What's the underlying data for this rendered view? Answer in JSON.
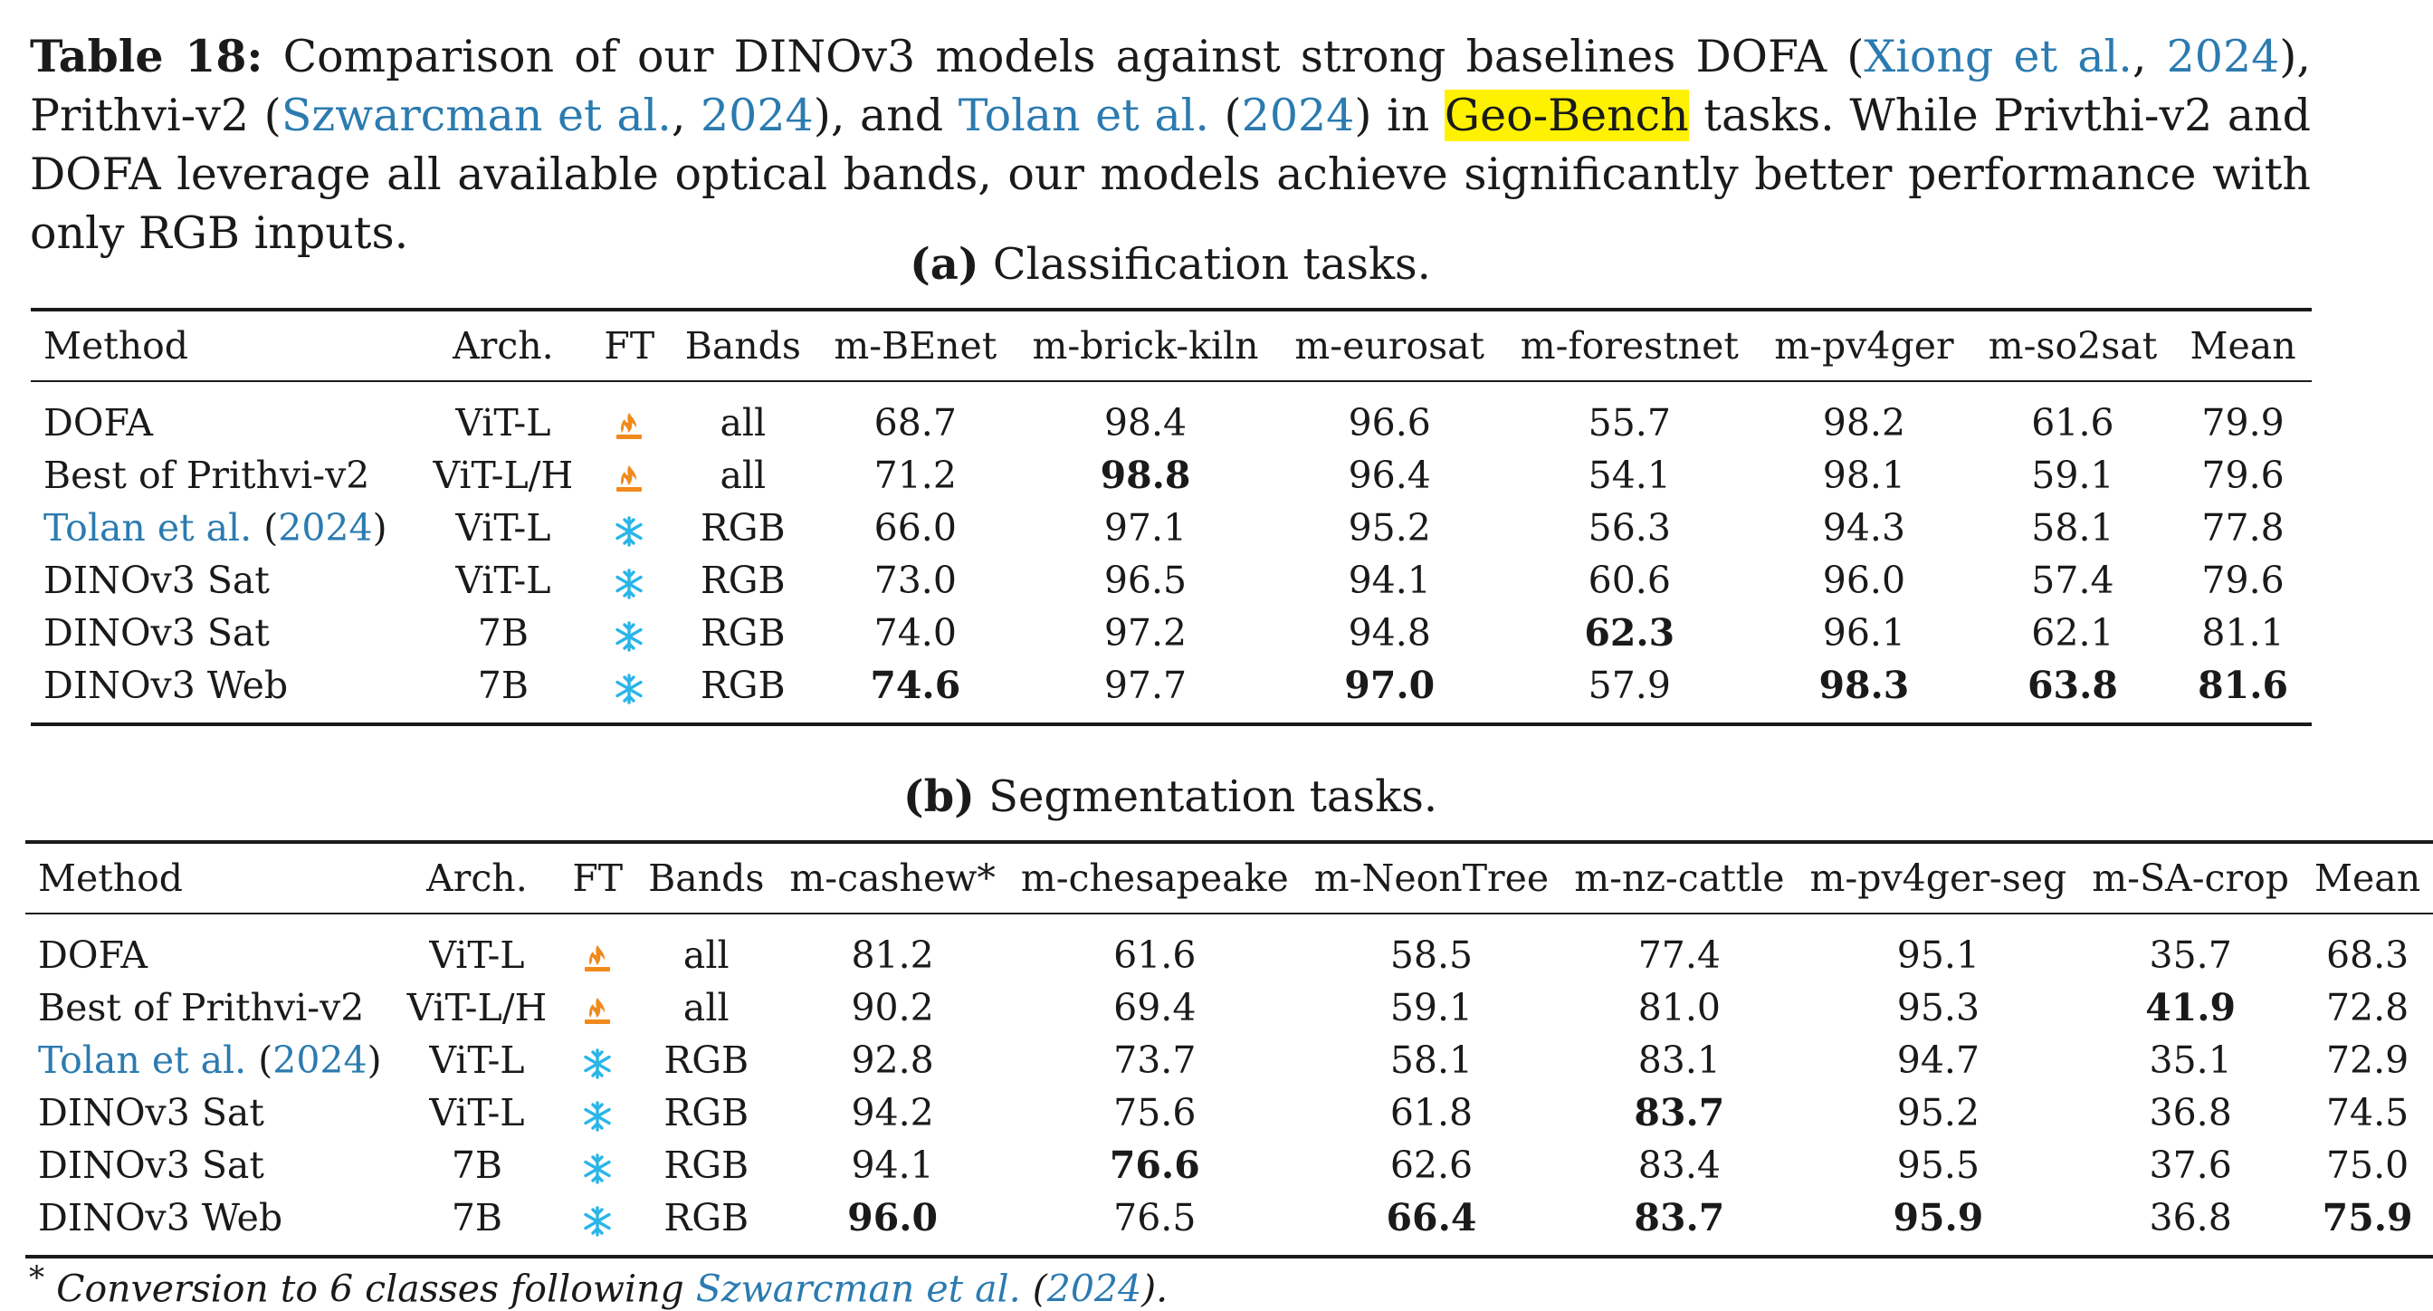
{
  "caption": {
    "label": "Table 18:",
    "part1": " Comparison of our DINOv3 models against strong baselines DOFA (",
    "cite_xiong_authors": "Xiong et al.",
    "sep1": ", ",
    "cite_xiong_year": "2024",
    "part2": "), Prithvi-v2 (",
    "cite_szw_authors": "Szwarcman et al.",
    "sep2": ", ",
    "cite_szw_year": "2024",
    "part3": "), and ",
    "cite_tolan_authors": "Tolan et al.",
    "part4": " (",
    "cite_tolan_year": "2024",
    "part5": ") in ",
    "highlight": "Geo-Bench",
    "part6": " tasks. While Privthi-v2 and DOFA leverage all available optical bands, our models achieve significantly better performance with only RGB inputs."
  },
  "table_a": {
    "label": "(a)",
    "title": " Classification tasks.",
    "headers": [
      "Method",
      "Arch.",
      "FT",
      "Bands",
      "m-BEnet",
      "m-brick-kiln",
      "m-eurosat",
      "m-forestnet",
      "m-pv4ger",
      "m-so2sat",
      "Mean"
    ],
    "rows": [
      {
        "method": "DOFA",
        "cite": false,
        "arch": "ViT-L",
        "ft": "fire",
        "bands": "all",
        "values": [
          "68.7",
          "98.4",
          "96.6",
          "55.7",
          "98.2",
          "61.6",
          "79.9"
        ],
        "bold": [
          false,
          false,
          false,
          false,
          false,
          false,
          false
        ]
      },
      {
        "method": "Best of Prithvi-v2",
        "cite": false,
        "arch": "ViT-L/H",
        "ft": "fire",
        "bands": "all",
        "values": [
          "71.2",
          "98.8",
          "96.4",
          "54.1",
          "98.1",
          "59.1",
          "79.6"
        ],
        "bold": [
          false,
          true,
          false,
          false,
          false,
          false,
          false
        ]
      },
      {
        "method": "Tolan et al.",
        "cite": true,
        "year": "2024",
        "arch": "ViT-L",
        "ft": "snow",
        "bands": "RGB",
        "values": [
          "66.0",
          "97.1",
          "95.2",
          "56.3",
          "94.3",
          "58.1",
          "77.8"
        ],
        "bold": [
          false,
          false,
          false,
          false,
          false,
          false,
          false
        ]
      },
      {
        "method": "DINOv3 Sat",
        "cite": false,
        "arch": "ViT-L",
        "ft": "snow",
        "bands": "RGB",
        "values": [
          "73.0",
          "96.5",
          "94.1",
          "60.6",
          "96.0",
          "57.4",
          "79.6"
        ],
        "bold": [
          false,
          false,
          false,
          false,
          false,
          false,
          false
        ]
      },
      {
        "method": "DINOv3 Sat",
        "cite": false,
        "arch": "7B",
        "ft": "snow",
        "bands": "RGB",
        "values": [
          "74.0",
          "97.2",
          "94.8",
          "62.3",
          "96.1",
          "62.1",
          "81.1"
        ],
        "bold": [
          false,
          false,
          false,
          true,
          false,
          false,
          false
        ]
      },
      {
        "method": "DINOv3 Web",
        "cite": false,
        "arch": "7B",
        "ft": "snow",
        "bands": "RGB",
        "values": [
          "74.6",
          "97.7",
          "97.0",
          "57.9",
          "98.3",
          "63.8",
          "81.6"
        ],
        "bold": [
          true,
          false,
          true,
          false,
          true,
          true,
          true
        ]
      }
    ]
  },
  "table_b": {
    "label": "(b)",
    "title": " Segmentation tasks.",
    "headers": [
      "Method",
      "Arch.",
      "FT",
      "Bands",
      "m-cashew*",
      "m-chesapeake",
      "m-NeonTree",
      "m-nz-cattle",
      "m-pv4ger-seg",
      "m-SA-crop",
      "Mean"
    ],
    "rows": [
      {
        "method": "DOFA",
        "cite": false,
        "arch": "ViT-L",
        "ft": "fire",
        "bands": "all",
        "values": [
          "81.2",
          "61.6",
          "58.5",
          "77.4",
          "95.1",
          "35.7",
          "68.3"
        ],
        "bold": [
          false,
          false,
          false,
          false,
          false,
          false,
          false
        ]
      },
      {
        "method": "Best of Prithvi-v2",
        "cite": false,
        "arch": "ViT-L/H",
        "ft": "fire",
        "bands": "all",
        "values": [
          "90.2",
          "69.4",
          "59.1",
          "81.0",
          "95.3",
          "41.9",
          "72.8"
        ],
        "bold": [
          false,
          false,
          false,
          false,
          false,
          true,
          false
        ]
      },
      {
        "method": "Tolan et al.",
        "cite": true,
        "year": "2024",
        "arch": "ViT-L",
        "ft": "snow",
        "bands": "RGB",
        "values": [
          "92.8",
          "73.7",
          "58.1",
          "83.1",
          "94.7",
          "35.1",
          "72.9"
        ],
        "bold": [
          false,
          false,
          false,
          false,
          false,
          false,
          false
        ]
      },
      {
        "method": "DINOv3 Sat",
        "cite": false,
        "arch": "ViT-L",
        "ft": "snow",
        "bands": "RGB",
        "values": [
          "94.2",
          "75.6",
          "61.8",
          "83.7",
          "95.2",
          "36.8",
          "74.5"
        ],
        "bold": [
          false,
          false,
          false,
          true,
          false,
          false,
          false
        ]
      },
      {
        "method": "DINOv3 Sat",
        "cite": false,
        "arch": "7B",
        "ft": "snow",
        "bands": "RGB",
        "values": [
          "94.1",
          "76.6",
          "62.6",
          "83.4",
          "95.5",
          "37.6",
          "75.0"
        ],
        "bold": [
          false,
          true,
          false,
          false,
          false,
          false,
          false
        ]
      },
      {
        "method": "DINOv3 Web",
        "cite": false,
        "arch": "7B",
        "ft": "snow",
        "bands": "RGB",
        "values": [
          "96.0",
          "76.5",
          "66.4",
          "83.7",
          "95.9",
          "36.8",
          "75.9"
        ],
        "bold": [
          true,
          false,
          true,
          true,
          true,
          false,
          true
        ]
      }
    ]
  },
  "footnote": {
    "mark": "*",
    "text": " Conversion to 6 classes following ",
    "cite_authors": "Szwarcman et al.",
    "cite_year": "2024",
    "end": "."
  },
  "colors": {
    "citation": "#2b7bb0",
    "highlight": "#fff200",
    "fire_icon": "#f08a1c",
    "snow_icon": "#2ab5e8"
  }
}
